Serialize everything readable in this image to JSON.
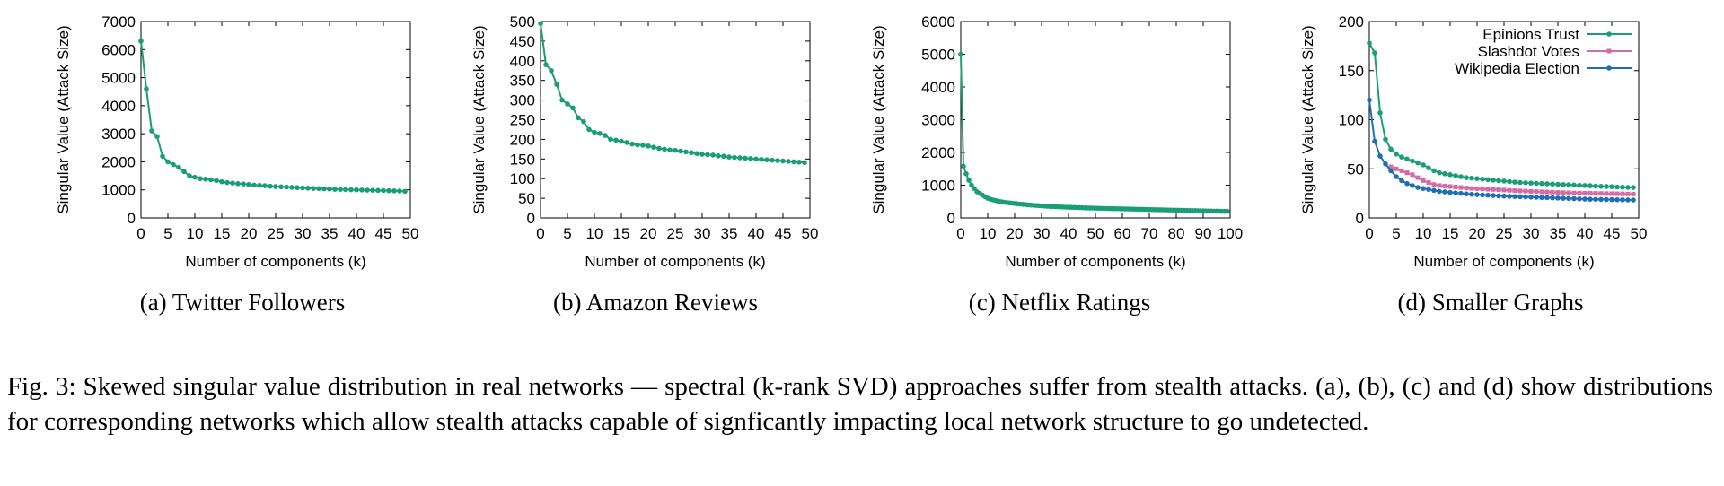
{
  "chart_data": [
    {
      "type": "line",
      "caption": "(a) Twitter Followers",
      "xlabel": "Number of components (k)",
      "ylabel": "Singular Value (Attack Size)",
      "xlim": [
        0,
        50
      ],
      "ylim": [
        0,
        7000
      ],
      "xticks": [
        0,
        5,
        10,
        15,
        20,
        25,
        30,
        35,
        40,
        45,
        50
      ],
      "yticks": [
        0,
        1000,
        2000,
        3000,
        4000,
        5000,
        6000,
        7000
      ],
      "series": [
        {
          "color": "#1a9e77",
          "x": [
            0,
            1,
            2,
            3,
            4,
            5,
            6,
            7,
            8,
            9,
            10,
            11,
            12,
            13,
            14,
            15,
            16,
            17,
            18,
            19,
            20,
            21,
            22,
            23,
            24,
            25,
            26,
            27,
            28,
            29,
            30,
            31,
            32,
            33,
            34,
            35,
            36,
            37,
            38,
            39,
            40,
            41,
            42,
            43,
            44,
            45,
            46,
            47,
            48,
            49
          ],
          "y": [
            6300,
            4600,
            3100,
            2900,
            2200,
            2000,
            1900,
            1800,
            1650,
            1500,
            1450,
            1400,
            1380,
            1360,
            1330,
            1290,
            1260,
            1240,
            1220,
            1210,
            1190,
            1170,
            1160,
            1150,
            1130,
            1120,
            1110,
            1100,
            1090,
            1080,
            1070,
            1060,
            1050,
            1045,
            1040,
            1030,
            1020,
            1015,
            1010,
            1005,
            1000,
            995,
            990,
            985,
            980,
            975,
            970,
            965,
            960,
            950
          ]
        }
      ]
    },
    {
      "type": "line",
      "caption": "(b) Amazon Reviews",
      "xlabel": "Number of components (k)",
      "ylabel": "Singular Value (Attack Size)",
      "xlim": [
        0,
        50
      ],
      "ylim": [
        0,
        500
      ],
      "xticks": [
        0,
        5,
        10,
        15,
        20,
        25,
        30,
        35,
        40,
        45,
        50
      ],
      "yticks": [
        0,
        50,
        100,
        150,
        200,
        250,
        300,
        350,
        400,
        450,
        500
      ],
      "series": [
        {
          "color": "#1a9e77",
          "x": [
            0,
            1,
            2,
            3,
            4,
            5,
            6,
            7,
            8,
            9,
            10,
            11,
            12,
            13,
            14,
            15,
            16,
            17,
            18,
            19,
            20,
            21,
            22,
            23,
            24,
            25,
            26,
            27,
            28,
            29,
            30,
            31,
            32,
            33,
            34,
            35,
            36,
            37,
            38,
            39,
            40,
            41,
            42,
            43,
            44,
            45,
            46,
            47,
            48,
            49
          ],
          "y": [
            495,
            390,
            375,
            340,
            300,
            290,
            280,
            255,
            245,
            225,
            218,
            215,
            210,
            200,
            198,
            195,
            192,
            188,
            186,
            185,
            183,
            180,
            177,
            175,
            173,
            172,
            170,
            168,
            166,
            164,
            162,
            161,
            160,
            158,
            157,
            155,
            154,
            153,
            152,
            151,
            150,
            149,
            148,
            147,
            146,
            145,
            144,
            143,
            142,
            141
          ]
        }
      ]
    },
    {
      "type": "line",
      "caption": "(c) Netflix Ratings",
      "xlabel": "Number of components (k)",
      "ylabel": "Singular Value (Attack Size)",
      "xlim": [
        0,
        100
      ],
      "ylim": [
        0,
        6000
      ],
      "xticks": [
        0,
        10,
        20,
        30,
        40,
        50,
        60,
        70,
        80,
        90,
        100
      ],
      "yticks": [
        0,
        1000,
        2000,
        3000,
        4000,
        5000,
        6000
      ],
      "series": [
        {
          "color": "#1a9e77",
          "x": [
            0,
            1,
            2,
            3,
            4,
            5,
            6,
            7,
            8,
            9,
            10,
            11,
            12,
            13,
            14,
            15,
            16,
            17,
            18,
            19,
            20,
            21,
            22,
            23,
            24,
            25,
            26,
            27,
            28,
            29,
            30,
            31,
            32,
            33,
            34,
            35,
            36,
            37,
            38,
            39,
            40,
            41,
            42,
            43,
            44,
            45,
            46,
            47,
            48,
            49,
            50,
            51,
            52,
            53,
            54,
            55,
            56,
            57,
            58,
            59,
            60,
            61,
            62,
            63,
            64,
            65,
            66,
            67,
            68,
            69,
            70,
            71,
            72,
            73,
            74,
            75,
            76,
            77,
            78,
            79,
            80,
            81,
            82,
            83,
            84,
            85,
            86,
            87,
            88,
            89,
            90,
            91,
            92,
            93,
            94,
            95,
            96,
            97,
            98,
            99
          ],
          "y": [
            5000,
            1580,
            1350,
            1150,
            1000,
            900,
            800,
            750,
            700,
            650,
            600,
            570,
            550,
            530,
            510,
            495,
            480,
            470,
            460,
            450,
            440,
            432,
            424,
            416,
            408,
            400,
            393,
            386,
            380,
            374,
            368,
            362,
            357,
            352,
            348,
            344,
            340,
            336,
            332,
            329,
            326,
            323,
            320,
            317,
            314,
            311,
            308,
            305,
            302,
            300,
            297,
            295,
            293,
            291,
            289,
            287,
            285,
            283,
            281,
            279,
            277,
            275,
            273,
            271,
            269,
            267,
            265,
            263,
            261,
            259,
            257,
            255,
            253,
            251,
            249,
            247,
            245,
            243,
            241,
            239,
            237,
            235,
            233,
            231,
            229,
            227,
            225,
            223,
            221,
            219,
            217,
            215,
            213,
            211,
            209,
            207,
            205,
            203,
            201,
            199
          ]
        }
      ]
    },
    {
      "type": "line",
      "caption": "(d) Smaller Graphs",
      "xlabel": "Number of components (k)",
      "ylabel": "Singular Value (Attack Size)",
      "xlim": [
        0,
        50
      ],
      "ylim": [
        0,
        200
      ],
      "xticks": [
        0,
        5,
        10,
        15,
        20,
        25,
        30,
        35,
        40,
        45,
        50
      ],
      "yticks": [
        0,
        50,
        100,
        150,
        200
      ],
      "legend": "top-right",
      "series": [
        {
          "name": "Epinions Trust",
          "color": "#1a9e77",
          "x": [
            0,
            1,
            2,
            3,
            4,
            5,
            6,
            7,
            8,
            9,
            10,
            11,
            12,
            13,
            14,
            15,
            16,
            17,
            18,
            19,
            20,
            21,
            22,
            23,
            24,
            25,
            26,
            27,
            28,
            29,
            30,
            31,
            32,
            33,
            34,
            35,
            36,
            37,
            38,
            39,
            40,
            41,
            42,
            43,
            44,
            45,
            46,
            47,
            48,
            49
          ],
          "y": [
            178,
            168,
            107,
            80,
            70,
            65,
            62,
            60,
            58,
            56,
            54,
            51,
            48,
            46,
            45,
            44,
            43,
            42,
            41,
            40.5,
            40,
            39.5,
            39,
            38.5,
            38,
            37.5,
            37,
            36.5,
            36,
            35.8,
            35.5,
            35.2,
            35,
            34.8,
            34.5,
            34.2,
            34,
            33.8,
            33.5,
            33.2,
            33,
            32.8,
            32.5,
            32.2,
            32,
            31.8,
            31.5,
            31.3,
            31.1,
            31
          ]
        },
        {
          "name": "Slashdot Votes",
          "color": "#d36ba6",
          "x": [
            4,
            5,
            6,
            7,
            8,
            9,
            10,
            11,
            12,
            13,
            14,
            15,
            16,
            17,
            18,
            19,
            20,
            21,
            22,
            23,
            24,
            25,
            26,
            27,
            28,
            29,
            30,
            31,
            32,
            33,
            34,
            35,
            36,
            37,
            38,
            39,
            40,
            41,
            42,
            43,
            44,
            45,
            46,
            47,
            48,
            49
          ],
          "y": [
            52,
            50,
            48,
            46,
            44,
            41,
            38,
            36,
            34,
            33,
            32.5,
            32,
            31.5,
            31,
            30.5,
            30,
            29.8,
            29.5,
            29.2,
            29,
            28.7,
            28.4,
            28.1,
            27.8,
            27.5,
            27.3,
            27,
            26.8,
            26.6,
            26.4,
            26.2,
            26,
            25.8,
            25.6,
            25.4,
            25.3,
            25.2,
            25.1,
            25,
            24.9,
            24.8,
            24.7,
            24.6,
            24.5,
            24.4,
            24.3
          ]
        },
        {
          "name": "Wikipedia Election",
          "color": "#1f6fb4",
          "x": [
            0,
            1,
            2,
            3,
            4,
            5,
            6,
            7,
            8,
            9,
            10,
            11,
            12,
            13,
            14,
            15,
            16,
            17,
            18,
            19,
            20,
            21,
            22,
            23,
            24,
            25,
            26,
            27,
            28,
            29,
            30,
            31,
            32,
            33,
            34,
            35,
            36,
            37,
            38,
            39,
            40,
            41,
            42,
            43,
            44,
            45,
            46,
            47,
            48,
            49
          ],
          "y": [
            120,
            78,
            63,
            55,
            48,
            42,
            38,
            35,
            33,
            31,
            30,
            29,
            28,
            27,
            26.5,
            26,
            25.5,
            25,
            24.5,
            24,
            23.7,
            23.4,
            23.1,
            22.8,
            22.5,
            22.2,
            22,
            21.8,
            21.6,
            21.4,
            21.2,
            21,
            20.8,
            20.6,
            20.4,
            20.2,
            20,
            19.8,
            19.6,
            19.4,
            19.2,
            19,
            18.9,
            18.8,
            18.7,
            18.6,
            18.5,
            18.4,
            18.3,
            18.2
          ]
        }
      ]
    }
  ],
  "figure_caption": "Fig. 3: Skewed singular value distribution in real networks — spectral (k-rank SVD) approaches suffer from stealth attacks. (a), (b), (c) and (d) show distributions for corresponding networks which allow stealth attacks capable of signficantly impacting local network structure to go undetected."
}
